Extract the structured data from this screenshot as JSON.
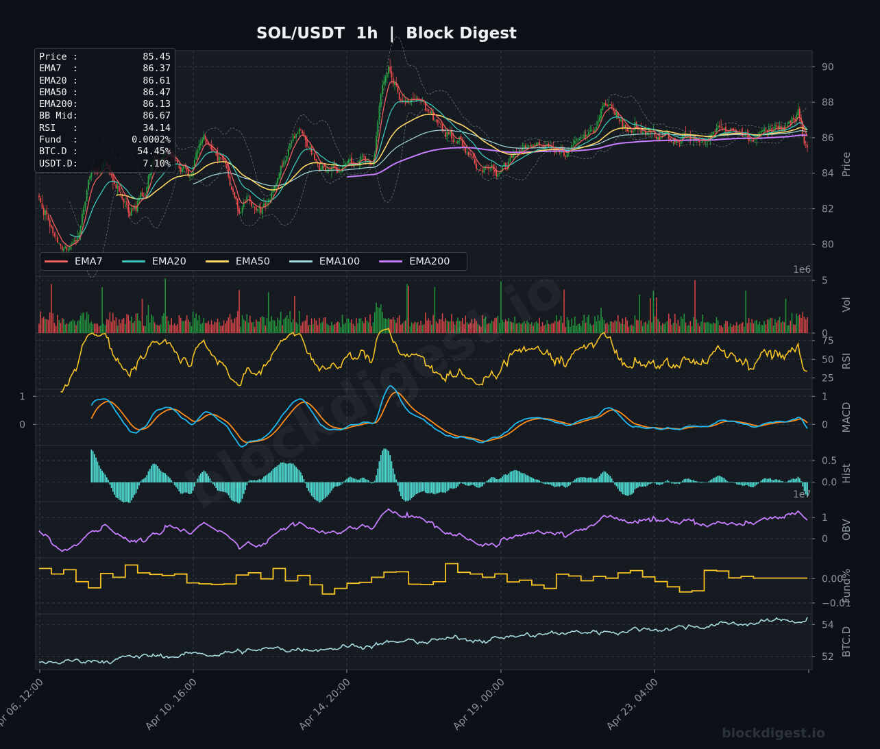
{
  "title": "SOL/USDT  1h  |  Block Digest",
  "watermark": "blockdigest.io",
  "brand": "blockdigest.io",
  "info_box": [
    {
      "label": "Price :",
      "value": "85.45"
    },
    {
      "label": "EMA7  :",
      "value": "86.37"
    },
    {
      "label": "EMA20 :",
      "value": "86.61"
    },
    {
      "label": "EMA50 :",
      "value": "86.47"
    },
    {
      "label": "EMA200:",
      "value": "86.13"
    },
    {
      "label": "BB Mid:",
      "value": "86.67"
    },
    {
      "label": "RSI   :",
      "value": "34.14"
    },
    {
      "label": "Fund  :",
      "value": "0.0002%"
    },
    {
      "label": "BTC.D :",
      "value": "54.45%"
    },
    {
      "label": "USDT.D:",
      "value": "7.10%"
    }
  ],
  "legend": [
    {
      "name": "EMA7",
      "color": "#ef5f5f"
    },
    {
      "name": "EMA20",
      "color": "#3ec7bb"
    },
    {
      "name": "EMA50",
      "color": "#ffd866"
    },
    {
      "name": "EMA100",
      "color": "#a6dbe0"
    },
    {
      "name": "EMA200",
      "color": "#c77dff"
    }
  ],
  "colors": {
    "background": "#0d1117",
    "panel": "#161b22",
    "grid": "#3a414b",
    "up": "#26a641",
    "down": "#f04a4a",
    "rsi": "#f7c325",
    "macd": "#1fb8f0",
    "signal": "#ff8c1a",
    "hist": "#4ed8cf",
    "obv": "#c77dff",
    "fund": "#f7c325",
    "btcd": "#a6dbe0",
    "bb": "#8b949e"
  },
  "chart_data": {
    "type": "line",
    "x_ticks": [
      "Apr 06, 12:00",
      "Apr 10, 16:00",
      "Apr 14, 20:00",
      "Apr 19, 00:00",
      "Apr 23, 04:00"
    ],
    "n_bars": 500,
    "panels": [
      {
        "name": "Price",
        "ylabel": "Price",
        "ticks": [
          "80",
          "82",
          "84",
          "86",
          "88",
          "90"
        ],
        "ylim": [
          78.2,
          90.9
        ],
        "series": [
          "EMA7",
          "EMA20",
          "EMA50",
          "EMA100",
          "EMA200"
        ],
        "price_keypoints": [
          [
            0,
            82.5
          ],
          [
            25,
            79.3
          ],
          [
            30,
            79.6
          ],
          [
            42,
            80.2
          ],
          [
            55,
            84.2
          ],
          [
            70,
            84.8
          ],
          [
            80,
            83.6
          ],
          [
            95,
            81.9
          ],
          [
            110,
            83.3
          ],
          [
            120,
            84.8
          ],
          [
            140,
            84.9
          ],
          [
            160,
            83.7
          ],
          [
            175,
            85.4
          ],
          [
            195,
            84.5
          ],
          [
            210,
            82.1
          ],
          [
            240,
            82.1
          ],
          [
            255,
            84.0
          ],
          [
            270,
            86.5
          ],
          [
            278,
            86.0
          ],
          [
            290,
            84.9
          ],
          [
            310,
            84.1
          ],
          [
            330,
            84.5
          ],
          [
            355,
            84.9
          ],
          [
            362,
            88.5
          ],
          [
            370,
            89.4
          ],
          [
            385,
            87.9
          ],
          [
            400,
            88.4
          ],
          [
            418,
            87.2
          ],
          [
            438,
            86.1
          ],
          [
            455,
            85.3
          ],
          [
            465,
            84.3
          ],
          [
            480,
            83.9
          ],
          [
            500,
            84.9
          ],
          [
            520,
            85.5
          ],
          [
            540,
            85.8
          ],
          [
            565,
            85.6
          ],
          [
            580,
            86.0
          ],
          [
            598,
            87.8
          ],
          [
            610,
            87.2
          ],
          [
            625,
            86.1
          ],
          [
            660,
            86.2
          ],
          [
            700,
            86.1
          ],
          [
            740,
            86.2
          ],
          [
            765,
            86.4
          ],
          [
            790,
            86.3
          ],
          [
            800,
            86.8
          ],
          [
            805,
            87.5
          ],
          [
            812,
            85.6
          ],
          [
            815,
            85.45
          ]
        ]
      },
      {
        "name": "Vol",
        "ylabel": "Vol",
        "ticks": [
          "0",
          "5"
        ],
        "exponent": "1e6",
        "ylim": [
          0,
          5.4
        ]
      },
      {
        "name": "RSI",
        "ylabel": "RSI",
        "ticks": [
          "25",
          "50",
          "75"
        ],
        "ylim": [
          10,
          85
        ]
      },
      {
        "name": "MACD",
        "ylabel": "MACD",
        "ticks": [
          "0",
          "1"
        ],
        "left_ticks": [
          "0",
          "1"
        ],
        "ylim": [
          -0.75,
          1.25
        ]
      },
      {
        "name": "Hist",
        "ylabel": "Hist",
        "ticks": [
          "0.0",
          "0.5"
        ],
        "ylim": [
          -0.45,
          0.85
        ]
      },
      {
        "name": "OBV",
        "ylabel": "OBV",
        "ticks": [
          "0",
          "1"
        ],
        "exponent": "1e7",
        "ylim": [
          -0.9,
          1.75
        ]
      },
      {
        "name": "Fund%",
        "ylabel": "Fund%",
        "ticks": [
          "−0.01",
          "0.00"
        ],
        "ylim": [
          -0.0145,
          0.0085
        ]
      },
      {
        "name": "BTC.D",
        "ylabel": "BTC.D",
        "ticks": [
          "52",
          "54"
        ],
        "ylim": [
          51.2,
          54.65
        ]
      }
    ]
  }
}
